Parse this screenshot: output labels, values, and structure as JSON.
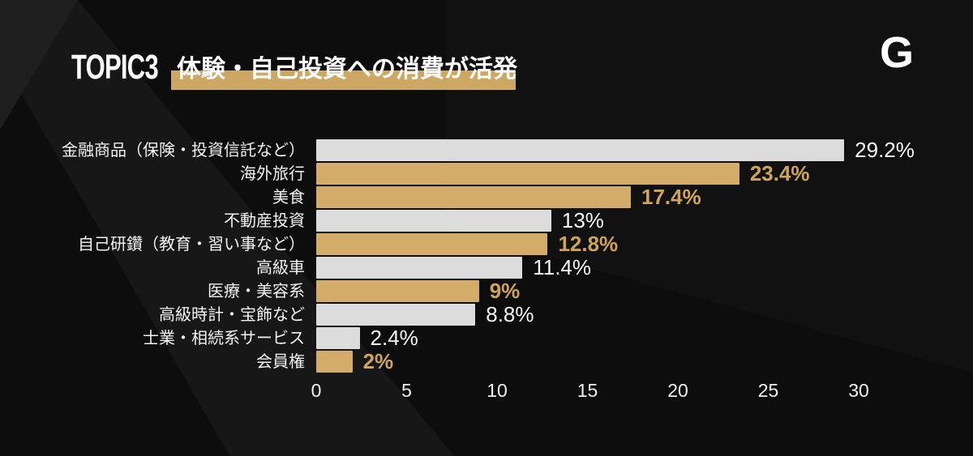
{
  "header": {
    "topic_label": "TOPIC3",
    "title": "体験・自己投資への消費が活発",
    "logo_letter": "G"
  },
  "chart_data": {
    "type": "bar",
    "orientation": "horizontal",
    "title": "体験・自己投資への消費が活発",
    "categories": [
      "金融商品（保険・投資信託など）",
      "海外旅行",
      "美食",
      "不動産投資",
      "自己研鑽（教育・習い事など）",
      "高級車",
      "医療・美容系",
      "高級時計・宝飾など",
      "士業・相続系サービス",
      "会員権"
    ],
    "values": [
      29.2,
      23.4,
      17.4,
      13,
      12.8,
      11.4,
      9,
      8.8,
      2.4,
      2
    ],
    "value_labels": [
      "29.2%",
      "23.4%",
      "17.4%",
      "13%",
      "12.8%",
      "11.4%",
      "9%",
      "8.8%",
      "2.4%",
      "2%"
    ],
    "bar_styles": [
      "gray",
      "gold",
      "gold",
      "gray",
      "gold",
      "gray",
      "gold",
      "gray",
      "gray",
      "gold"
    ],
    "xlim": [
      0,
      30
    ],
    "x_ticks": [
      0,
      5,
      10,
      15,
      20,
      25,
      30
    ],
    "xlabel": "",
    "ylabel": "",
    "grid": false,
    "legend": false
  },
  "theme": {
    "background": "#0d0d0d",
    "gold": "#d3ac69",
    "gray_bar": "#dcdcdd",
    "gold_text": "#cfa455",
    "white_text": "#f5f5f5",
    "highlight": "#cda764"
  }
}
